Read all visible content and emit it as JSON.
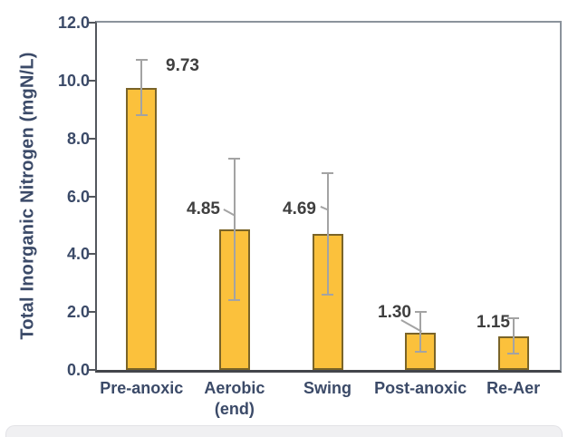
{
  "chart_data": {
    "type": "bar",
    "title": "",
    "xlabel": "",
    "ylabel": "Total Inorganic Nitrogen (mgN/L)",
    "ylim": [
      0,
      12
    ],
    "yticks": [
      0,
      2,
      4,
      6,
      8,
      10,
      12
    ],
    "ytick_labels": [
      "0.0",
      "2.0",
      "4.0",
      "6.0",
      "8.0",
      "10.0",
      "12.0"
    ],
    "grid": false,
    "legend": null,
    "categories": [
      "Pre-anoxic",
      "Aerobic\n(end)",
      "Swing",
      "Post-anoxic",
      "Re-Aer"
    ],
    "values": [
      9.73,
      4.85,
      4.69,
      1.3,
      1.15
    ],
    "data_labels": [
      "9.73",
      "4.85",
      "4.69",
      "1.30",
      "1.15"
    ],
    "error_bars": [
      {
        "upper": 10.7,
        "lower": 8.8
      },
      {
        "upper": 7.3,
        "lower": 2.4
      },
      {
        "upper": 6.8,
        "lower": 2.6
      },
      {
        "upper": 2.0,
        "lower": 0.63
      },
      {
        "upper": 1.8,
        "lower": 0.55
      }
    ],
    "colors": {
      "bar_fill": "#FBC13C",
      "bar_border": "#7A6428",
      "error_bar": "#A3A3A3",
      "axis_text": "#3B4A68",
      "data_label_text": "#3F3F3F",
      "frame_border": "#8B939C",
      "left_axis_line": "#53575D",
      "bottom_axis_line": "#43464B",
      "background": "#FFFFFF",
      "bottom_strip_fill": "#F0F0F2",
      "bottom_strip_border": "#E2E2E6"
    }
  }
}
